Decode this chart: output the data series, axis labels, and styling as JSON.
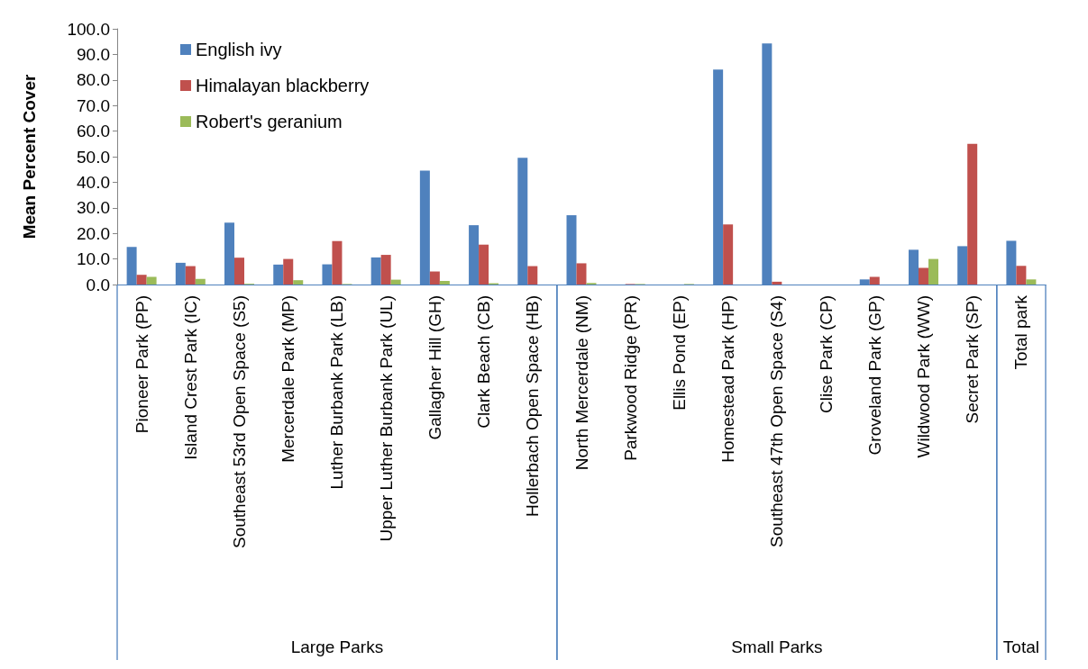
{
  "chart_data": {
    "type": "bar",
    "ylabel": "Mean Percent Cover",
    "categories": [
      "Pioneer Park (PP)",
      "Island Crest Park (IC)",
      "Southeast 53rd Open Space (S5)",
      "Mercerdale Park (MP)",
      "Luther Burbank Park (LB)",
      "Upper Luther Burbank Park (UL)",
      "Gallagher Hill (GH)",
      "Clark Beach (CB)",
      "Hollerbach Open Space (HB)",
      "North Mercerdale (NM)",
      "Parkwood Ridge (PR)",
      "Ellis Pond (EP)",
      "Homestead Park (HP)",
      "Southeast 47th Open Space (S4)",
      "Clise Park (CP)",
      "Groveland Park (GP)",
      "Wildwood Park (WW)",
      "Secret Park (SP)",
      "Total park"
    ],
    "series": [
      {
        "name": "English ivy",
        "color": "#4f81bd",
        "values": [
          14.7,
          8.5,
          24.2,
          7.8,
          7.9,
          10.6,
          44.5,
          23.2,
          49.6,
          27.1,
          0,
          null,
          84.1,
          94.3,
          0,
          2.0,
          13.6,
          15.0,
          17.1
        ]
      },
      {
        "name": "Himalayan blackberry",
        "color": "#c0504d",
        "values": [
          3.8,
          7.2,
          10.5,
          10.0,
          17.0,
          11.6,
          5.1,
          15.6,
          7.2,
          8.3,
          0.2,
          0,
          23.5,
          1.1,
          0,
          3.0,
          6.5,
          55.0,
          7.3
        ]
      },
      {
        "name": "Robert's geranium",
        "color": "#9bbb59",
        "values": [
          3.0,
          2.2,
          0.3,
          1.7,
          0.2,
          1.9,
          1.4,
          0.5,
          0,
          0.6,
          0.2,
          0.2,
          0,
          null,
          0,
          0,
          10.0,
          0,
          2.0
        ]
      }
    ],
    "ylim": [
      0,
      100
    ],
    "yticks": [
      {
        "value": 0,
        "label": "0.0"
      },
      {
        "value": 10,
        "label": "10.0"
      },
      {
        "value": 20,
        "label": "20.0"
      },
      {
        "value": 30,
        "label": "30.0"
      },
      {
        "value": 40,
        "label": "40.0"
      },
      {
        "value": 50,
        "label": "50.0"
      },
      {
        "value": 60,
        "label": "60.0"
      },
      {
        "value": 70,
        "label": "70.0"
      },
      {
        "value": 80,
        "label": "80.0"
      },
      {
        "value": 90,
        "label": "90.0"
      },
      {
        "value": 100,
        "label": "100.0"
      }
    ],
    "grid": false,
    "legend": "top left",
    "annotations": [
      "Large Parks",
      "Small Parks",
      "Total"
    ]
  }
}
